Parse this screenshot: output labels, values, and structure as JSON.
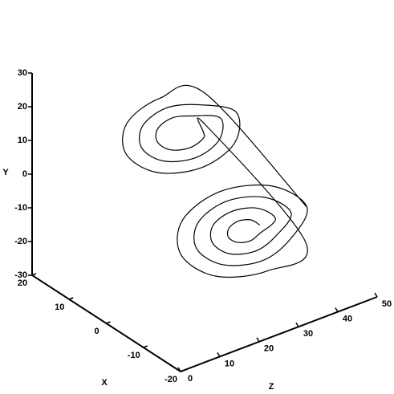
{
  "chart_data": {
    "type": "line3d",
    "xlabel": "X",
    "ylabel": "Y",
    "zlabel": "Z",
    "xlim": [
      -20,
      20
    ],
    "ylim": [
      -30,
      30
    ],
    "zlim": [
      0,
      50
    ],
    "xticks": [
      -20,
      -10,
      0,
      10,
      20
    ],
    "yticks": [
      -30,
      -20,
      -10,
      0,
      10,
      20,
      30
    ],
    "zticks": [
      0,
      10,
      20,
      30,
      40,
      50
    ],
    "series": [
      {
        "color": "#000000",
        "x": [
          -8.5,
          -7.4,
          -6.9,
          -7.4,
          -8.5,
          -9.6,
          -10.1,
          -9.6,
          -8.5,
          -6.2,
          -5.3,
          -6.2,
          -8.5,
          -10.8,
          -11.7,
          -10.8,
          -8.5,
          -5.1,
          -3.7,
          -5.1,
          -8.5,
          -11.9,
          -13.3,
          -11.9,
          -8.5,
          -4.0,
          -2.1,
          -4.0,
          -8.5,
          -13.0,
          -14.9,
          -13.0,
          8.5,
          6.8,
          6.1,
          6.8,
          8.5,
          10.2,
          10.9,
          10.2,
          8.5,
          5.7,
          4.5,
          5.7,
          8.5,
          11.3,
          12.5,
          11.3,
          8.5,
          4.5,
          2.9,
          4.5,
          8.5,
          12.5,
          14.1,
          12.5,
          -8.5
        ],
        "y": [
          -8.5,
          -7.2,
          -6.7,
          -7.2,
          -8.5,
          -9.8,
          -10.3,
          -9.8,
          -8.5,
          -5.9,
          -4.9,
          -5.9,
          -8.5,
          -11.1,
          -12.1,
          -11.1,
          -8.5,
          -4.7,
          -3.1,
          -4.7,
          -8.5,
          -12.3,
          -13.9,
          -12.3,
          -8.5,
          -3.4,
          -1.3,
          -3.4,
          -8.5,
          -13.6,
          -15.7,
          -13.6,
          8.5,
          6.6,
          5.8,
          6.6,
          8.5,
          10.4,
          11.2,
          10.4,
          8.5,
          5.3,
          4.0,
          5.3,
          8.5,
          11.7,
          13.0,
          11.7,
          8.5,
          4.0,
          2.2,
          4.0,
          8.5,
          13.0,
          14.8,
          13.0,
          -8.5
        ],
        "z": [
          31,
          29.8,
          27,
          24.2,
          23,
          24.2,
          27,
          29.8,
          35,
          32.7,
          27,
          21.3,
          19,
          21.3,
          27,
          32.7,
          39,
          35.5,
          27,
          18.5,
          15,
          18.5,
          27,
          35.5,
          43,
          38.4,
          27,
          15.6,
          11,
          15.6,
          27,
          38.4,
          33,
          31.3,
          27,
          22.7,
          21,
          22.7,
          27,
          31.3,
          37,
          34.1,
          27,
          19.9,
          17,
          19.9,
          27,
          34.1,
          41,
          36.9,
          27,
          17.1,
          13,
          17.1,
          27,
          36.9,
          43
        ]
      }
    ]
  }
}
